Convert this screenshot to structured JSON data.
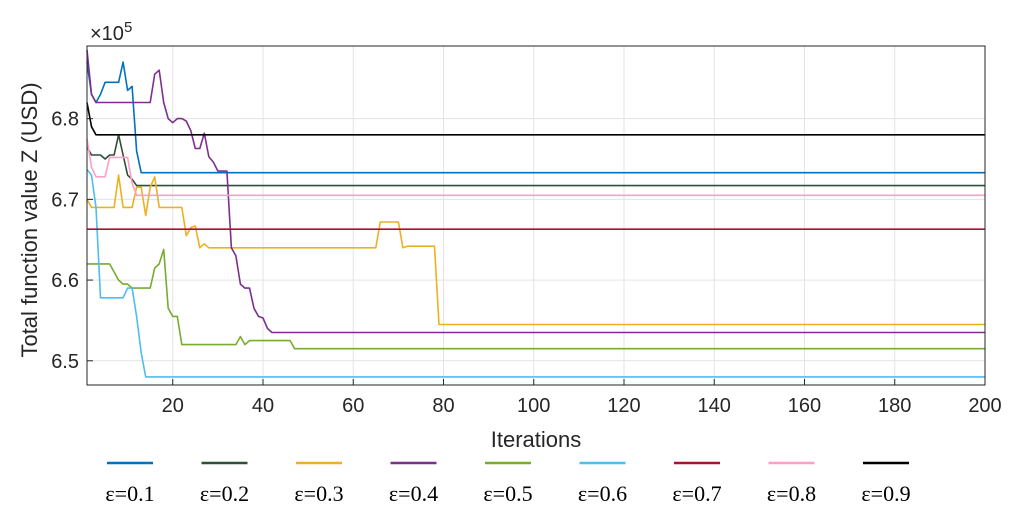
{
  "chart_data": {
    "type": "line",
    "xlabel": "Iterations",
    "ylabel": "Total function value Z (USD)",
    "y_exponent_label": "×10",
    "y_exponent_power": "5",
    "xlim": [
      1,
      200
    ],
    "ylim": [
      6.47,
      6.89
    ],
    "xticks": [
      20,
      40,
      60,
      80,
      100,
      120,
      140,
      160,
      180,
      200
    ],
    "yticks": [
      6.5,
      6.6,
      6.7,
      6.8
    ],
    "xtick_labels": [
      "20",
      "40",
      "60",
      "80",
      "100",
      "120",
      "140",
      "160",
      "180",
      "200"
    ],
    "ytick_labels": [
      "6.5",
      "6.6",
      "6.7",
      "6.8"
    ],
    "grid": true,
    "legend_position": "bottom",
    "series": [
      {
        "name": "ε=0.1",
        "color": "#0072BD",
        "points": [
          [
            1,
            6.87
          ],
          [
            2,
            6.83
          ],
          [
            3,
            6.82
          ],
          [
            4,
            6.83
          ],
          [
            5,
            6.845
          ],
          [
            7,
            6.845
          ],
          [
            8,
            6.845
          ],
          [
            9,
            6.87
          ],
          [
            10,
            6.835
          ],
          [
            11,
            6.84
          ],
          [
            12,
            6.76
          ],
          [
            13,
            6.733
          ],
          [
            200,
            6.733
          ]
        ]
      },
      {
        "name": "ε=0.2",
        "color": "#2F4F3A",
        "points": [
          [
            1,
            6.765
          ],
          [
            2,
            6.755
          ],
          [
            4,
            6.755
          ],
          [
            5,
            6.75
          ],
          [
            6,
            6.755
          ],
          [
            7,
            6.755
          ],
          [
            8,
            6.78
          ],
          [
            9,
            6.755
          ],
          [
            10,
            6.73
          ],
          [
            11,
            6.725
          ],
          [
            12,
            6.717
          ],
          [
            200,
            6.717
          ]
        ]
      },
      {
        "name": "ε=0.3",
        "color": "#EDB120",
        "points": [
          [
            1,
            6.7
          ],
          [
            2,
            6.69
          ],
          [
            7,
            6.69
          ],
          [
            8,
            6.73
          ],
          [
            9,
            6.69
          ],
          [
            11,
            6.69
          ],
          [
            12,
            6.715
          ],
          [
            13,
            6.715
          ],
          [
            14,
            6.68
          ],
          [
            15,
            6.715
          ],
          [
            16,
            6.728
          ],
          [
            17,
            6.69
          ],
          [
            22,
            6.69
          ],
          [
            23,
            6.655
          ],
          [
            24,
            6.665
          ],
          [
            25,
            6.667
          ],
          [
            26,
            6.64
          ],
          [
            27,
            6.645
          ],
          [
            28,
            6.64
          ],
          [
            65,
            6.64
          ],
          [
            66,
            6.672
          ],
          [
            70,
            6.672
          ],
          [
            71,
            6.64
          ],
          [
            72,
            6.642
          ],
          [
            78,
            6.642
          ],
          [
            79,
            6.545
          ],
          [
            200,
            6.545
          ]
        ]
      },
      {
        "name": "ε=0.4",
        "color": "#7E2F8E",
        "points": [
          [
            1,
            6.885
          ],
          [
            2,
            6.83
          ],
          [
            3,
            6.82
          ],
          [
            15,
            6.82
          ],
          [
            16,
            6.855
          ],
          [
            17,
            6.86
          ],
          [
            18,
            6.82
          ],
          [
            19,
            6.8
          ],
          [
            20,
            6.795
          ],
          [
            21,
            6.8
          ],
          [
            22,
            6.8
          ],
          [
            23,
            6.797
          ],
          [
            24,
            6.785
          ],
          [
            25,
            6.763
          ],
          [
            26,
            6.763
          ],
          [
            27,
            6.782
          ],
          [
            28,
            6.753
          ],
          [
            29,
            6.746
          ],
          [
            30,
            6.735
          ],
          [
            32,
            6.735
          ],
          [
            33,
            6.64
          ],
          [
            34,
            6.63
          ],
          [
            35,
            6.595
          ],
          [
            36,
            6.59
          ],
          [
            37,
            6.59
          ],
          [
            38,
            6.565
          ],
          [
            39,
            6.555
          ],
          [
            40,
            6.553
          ],
          [
            41,
            6.54
          ],
          [
            42,
            6.535
          ],
          [
            200,
            6.535
          ]
        ]
      },
      {
        "name": "ε=0.5",
        "color": "#77AC30",
        "points": [
          [
            1,
            6.62
          ],
          [
            6,
            6.62
          ],
          [
            7,
            6.61
          ],
          [
            8,
            6.6
          ],
          [
            9,
            6.595
          ],
          [
            10,
            6.595
          ],
          [
            11,
            6.59
          ],
          [
            15,
            6.59
          ],
          [
            16,
            6.615
          ],
          [
            17,
            6.62
          ],
          [
            18,
            6.638
          ],
          [
            19,
            6.565
          ],
          [
            20,
            6.555
          ],
          [
            21,
            6.555
          ],
          [
            22,
            6.52
          ],
          [
            34,
            6.52
          ],
          [
            35,
            6.53
          ],
          [
            36,
            6.52
          ],
          [
            37,
            6.525
          ],
          [
            46,
            6.525
          ],
          [
            47,
            6.515
          ],
          [
            200,
            6.515
          ]
        ]
      },
      {
        "name": "ε=0.6",
        "color": "#4DBEEE",
        "points": [
          [
            1,
            6.737
          ],
          [
            2,
            6.73
          ],
          [
            3,
            6.69
          ],
          [
            4,
            6.578
          ],
          [
            9,
            6.578
          ],
          [
            10,
            6.59
          ],
          [
            11,
            6.59
          ],
          [
            12,
            6.555
          ],
          [
            13,
            6.51
          ],
          [
            14,
            6.48
          ],
          [
            200,
            6.48
          ]
        ]
      },
      {
        "name": "ε=0.7",
        "color": "#A2142F",
        "points": [
          [
            1,
            6.663
          ],
          [
            200,
            6.663
          ]
        ]
      },
      {
        "name": "ε=0.8",
        "color": "#FF9FC8",
        "points": [
          [
            1,
            6.775
          ],
          [
            2,
            6.74
          ],
          [
            3,
            6.728
          ],
          [
            5,
            6.728
          ],
          [
            6,
            6.752
          ],
          [
            10,
            6.752
          ],
          [
            11,
            6.72
          ],
          [
            12,
            6.705
          ],
          [
            200,
            6.705
          ]
        ]
      },
      {
        "name": "ε=0.9",
        "color": "#000000",
        "points": [
          [
            1,
            6.82
          ],
          [
            2,
            6.79
          ],
          [
            3,
            6.78
          ],
          [
            200,
            6.78
          ]
        ]
      }
    ]
  }
}
